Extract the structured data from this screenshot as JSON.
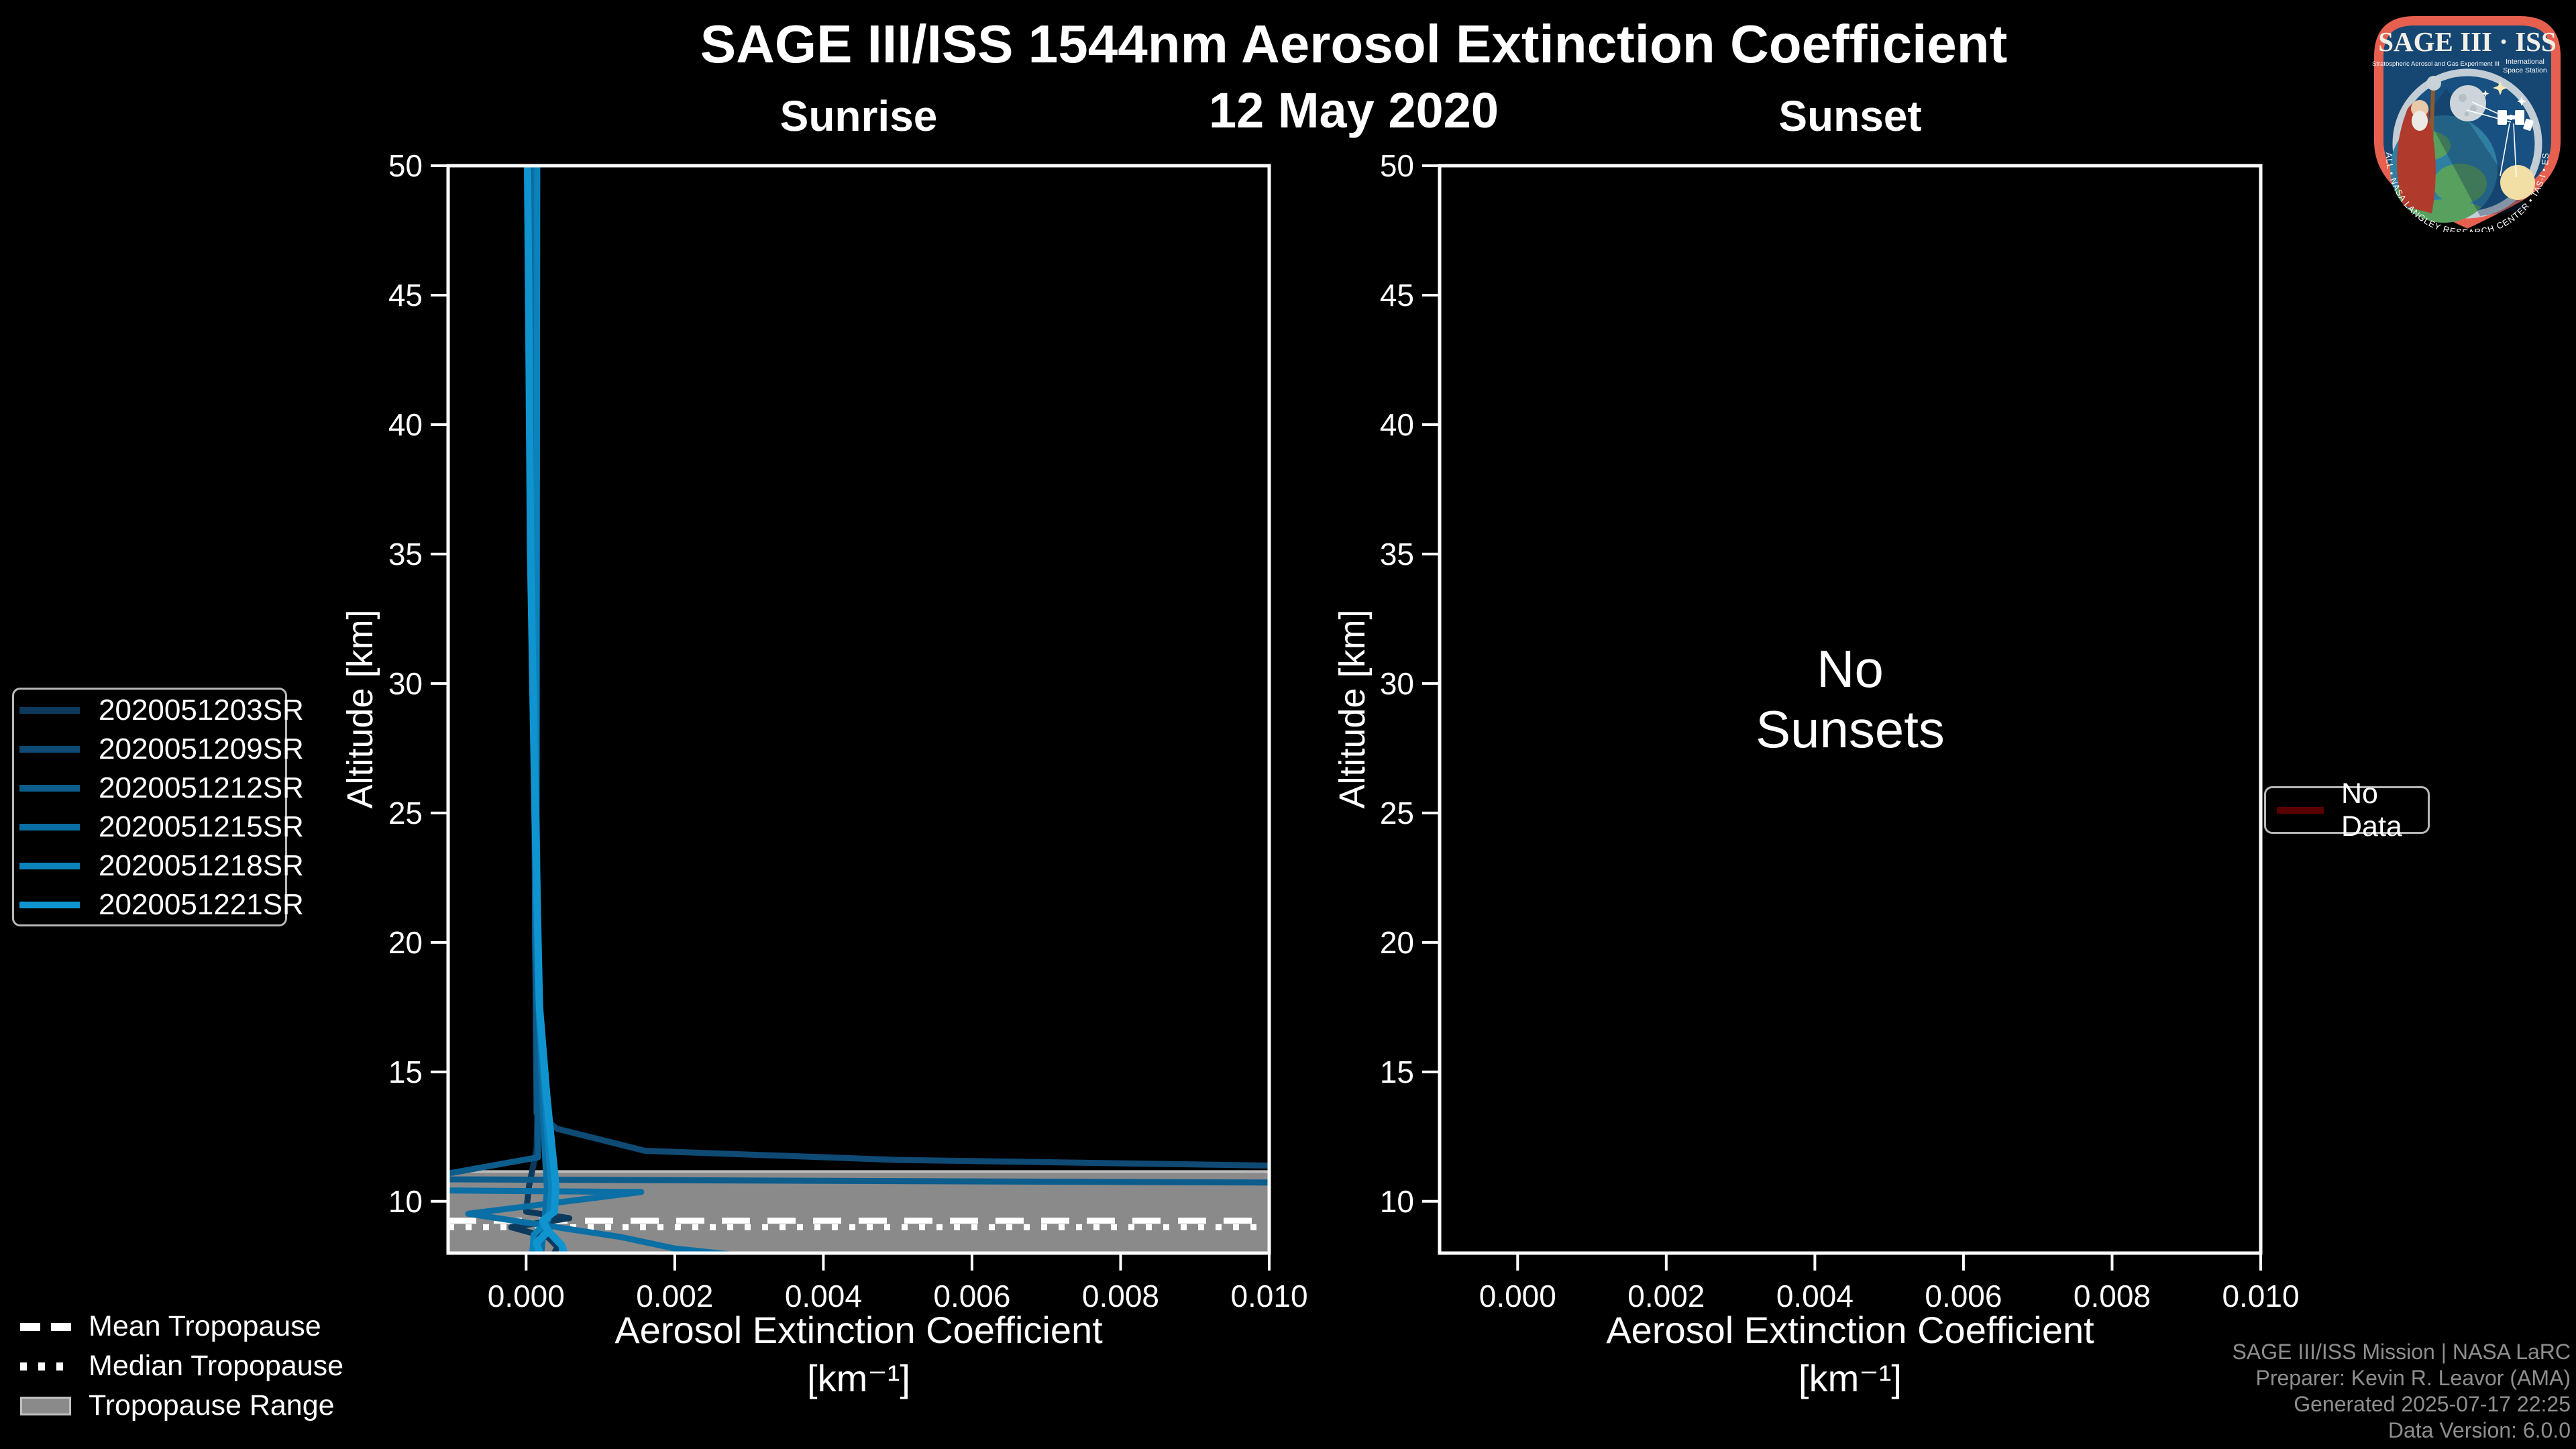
{
  "header": {
    "title": "SAGE III/ISS 1544nm Aerosol Extinction Coefficient",
    "date": "12 May 2020"
  },
  "panels": {
    "sunrise": {
      "title": "Sunrise"
    },
    "sunset": {
      "title": "Sunset",
      "message_line1": "No",
      "message_line2": "Sunsets"
    }
  },
  "axes": {
    "ylabel": "Altitude [km]",
    "xlabel_line1": "Aerosol Extinction Coefficient",
    "xlabel_line2": "[km⁻¹]",
    "xtick_labels": [
      "0.000",
      "0.002",
      "0.004",
      "0.006",
      "0.008",
      "0.010"
    ],
    "ytick_labels": [
      "50",
      "45",
      "40",
      "35",
      "30",
      "25",
      "20",
      "15",
      "10"
    ]
  },
  "series_legend": {
    "items": [
      {
        "label": "2020051203SR",
        "color": "#0d3a5c"
      },
      {
        "label": "2020051209SR",
        "color": "#0e4a74"
      },
      {
        "label": "2020051212SR",
        "color": "#0c5c8c"
      },
      {
        "label": "2020051215SR",
        "color": "#0a6fa4"
      },
      {
        "label": "2020051218SR",
        "color": "#0c82bb"
      },
      {
        "label": "2020051221SR",
        "color": "#1094d0"
      }
    ]
  },
  "tropopause_legend": {
    "mean": "Mean Tropopause",
    "median": "Median Tropopause",
    "range": "Tropopause Range",
    "range_fill": "#8a8a8a"
  },
  "no_data_legend": {
    "label": "No Data",
    "line_color": "#5a0000"
  },
  "credits": {
    "line1": "SAGE III/ISS Mission | NASA LaRC",
    "line2": "Preparer: Kevin R. Leavor (AMA)",
    "line3": "Generated 2025-07-17 22:25",
    "line4": "Data Version: 6.0.0"
  },
  "logo": {
    "title": "SAGE III · ISS",
    "sub_left": "Stratospheric Aerosol and Gas Experiment III",
    "sub_right1": "International",
    "sub_right2": "Space Station",
    "arc_text": "BALL • NASA LANGLEY RESEARCH CENTER • TAS-I • ESA"
  },
  "chart_data": {
    "type": "line",
    "title": "SAGE III/ISS 1544nm Aerosol Extinction Coefficient",
    "subtitle": "12 May 2020",
    "xlabel": "Aerosol Extinction Coefficient [km⁻¹]",
    "ylabel": "Altitude [km]",
    "xlim": [
      -0.00105,
      0.01
    ],
    "ylim": [
      8,
      50
    ],
    "xticks": [
      0,
      0.002,
      0.004,
      0.006,
      0.008,
      0.01
    ],
    "yticks": [
      50,
      45,
      40,
      35,
      30,
      25,
      20,
      15,
      10
    ],
    "grid": false,
    "legend_position": "left-outside",
    "panels": [
      {
        "name": "Sunrise",
        "tropopause": {
          "mean_km": 9.25,
          "median_km": 9.0,
          "range_km": [
            8.0,
            11.15
          ]
        },
        "series": [
          {
            "name": "2020051203SR",
            "color": "#0d3a5c",
            "width": 9,
            "paths": [
              [
                [
                  5e-05,
                  50
                ],
                [
                  8e-05,
                  30
                ],
                [
                  0.00018,
                  16
                ],
                [
                  0.00014,
                  12
                ],
                [
                  4e-05,
                  10.6
                ],
                [
                  0.0,
                  9.6
                ],
                [
                  0.00058,
                  9.35
                ],
                [
                  -0.0002,
                  9.0
                ],
                [
                  0.0003,
                  8.6
                ],
                [
                  0.00042,
                  8.25
                ],
                [
                  0.00038,
                  8.0
                ]
              ]
            ]
          },
          {
            "name": "2020051209SR",
            "color": "#0e4a74",
            "width": 9,
            "paths": [
              [
                [
                  8e-05,
                  50
                ],
                [
                  0.0001,
                  30
                ],
                [
                  0.00014,
                  13.4
                ],
                [
                  0.00042,
                  12.8
                ],
                [
                  0.0016,
                  11.95
                ],
                [
                  0.005,
                  11.6
                ],
                [
                  0.0105,
                  11.36
                ]
              ]
            ]
          },
          {
            "name": "2020051212SR",
            "color": "#0c5c8c",
            "width": 9,
            "paths": [
              [
                [
                  0.0001,
                  50
                ],
                [
                  0.00012,
                  20
                ],
                [
                  0.00016,
                  11.7
                ],
                [
                  -0.0011,
                  11.05
                ],
                [
                  -0.0011,
                  10.85
                ],
                [
                  0.0105,
                  10.72
                ]
              ]
            ]
          },
          {
            "name": "2020051215SR",
            "color": "#0a6fa4",
            "width": 9,
            "paths": [
              [
                [
                  0.00012,
                  50
                ],
                [
                  0.00013,
                  20
                ],
                [
                  0.00024,
                  12.5
                ],
                [
                  0.00028,
                  10.45
                ],
                [
                  0.00024,
                  9.0
                ],
                [
                  0.0002,
                  7.9
                ]
              ],
              [
                [
                  -0.0011,
                  10.42
                ],
                [
                  0.00155,
                  10.36
                ],
                [
                  -0.00078,
                  9.52
                ],
                [
                  0.00128,
                  8.62
                ],
                [
                  0.002,
                  8.18
                ],
                [
                  0.0029,
                  7.9
                ]
              ]
            ]
          },
          {
            "name": "2020051218SR",
            "color": "#0c82bb",
            "width": 9,
            "paths": [
              [
                [
                  0.00015,
                  50
                ],
                [
                  0.00014,
                  25
                ],
                [
                  0.00018,
                  17
                ],
                [
                  0.0003,
                  12
                ],
                [
                  0.00034,
                  10.5
                ],
                [
                  0.0003,
                  9.3
                ],
                [
                  0.0001,
                  8.7
                ],
                [
                  8e-05,
                  7.9
                ]
              ]
            ]
          },
          {
            "name": "2020051221SR",
            "color": "#1094d0",
            "width": 11,
            "paths": [
              [
                [
                  2e-05,
                  50
                ],
                [
                  6e-05,
                  35
                ],
                [
                  0.00012,
                  25
                ],
                [
                  0.00018,
                  17.5
                ],
                [
                  0.00028,
                  14
                ],
                [
                  0.0004,
                  10.6
                ],
                [
                  0.00038,
                  9.6
                ],
                [
                  0.00022,
                  9.25
                ],
                [
                  0.0003,
                  8.85
                ],
                [
                  0.00048,
                  8.3
                ],
                [
                  0.00052,
                  7.9
                ]
              ],
              [
                [
                  0.0003,
                  8.85
                ],
                [
                  0.00014,
                  8.4
                ],
                [
                  0.00019,
                  7.9
                ]
              ]
            ]
          }
        ]
      },
      {
        "name": "Sunset",
        "message": "No Sunsets",
        "series": [],
        "no_data": true
      }
    ]
  }
}
